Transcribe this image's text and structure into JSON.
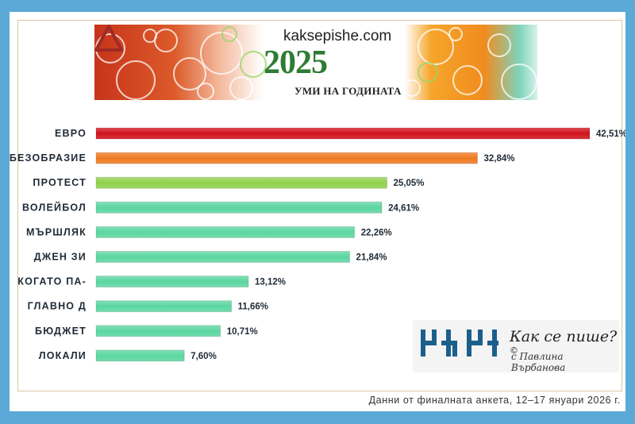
{
  "banner": {
    "site": "kaksepishe.com",
    "year": "2025",
    "subtitle": "УМИ НА ГОДИНАТА"
  },
  "logo": {
    "title": "Как се пише?",
    "mark": "©",
    "subtitle": "с Павлина Върбанова"
  },
  "footer": {
    "note": "Данни от финалната анкета, 12–17 януари 2026 г."
  },
  "chart_data": {
    "type": "bar",
    "orientation": "horizontal",
    "categories": [
      "ЕВРО",
      "БЕЗОБРАЗИЕ",
      "ПРОТЕСТ",
      "ВОЛЕЙБОЛ",
      "МЪРШЛЯК",
      "ДЖЕН ЗИ",
      "КОГАТО ПА-",
      "ГЛАВНО Д",
      "БЮДЖЕТ",
      "ЛОКАЛИ"
    ],
    "values": [
      42.51,
      32.84,
      25.05,
      24.61,
      22.26,
      21.84,
      13.12,
      11.66,
      10.71,
      7.6
    ],
    "value_labels": [
      "42,51%",
      "32,84%",
      "25,05%",
      "24,61%",
      "22,26%",
      "21,84%",
      "13,12%",
      "11,66%",
      "10,71%",
      "7,60%"
    ],
    "colors": [
      "#d0121b",
      "#f07a22",
      "#8fd14b",
      "#5bd6a0",
      "#5bd6a0",
      "#5bd6a0",
      "#5bd6a0",
      "#5bd6a0",
      "#5bd6a0",
      "#5bd6a0"
    ],
    "xlim": [
      0,
      45
    ],
    "grid": false,
    "legend": "none"
  }
}
